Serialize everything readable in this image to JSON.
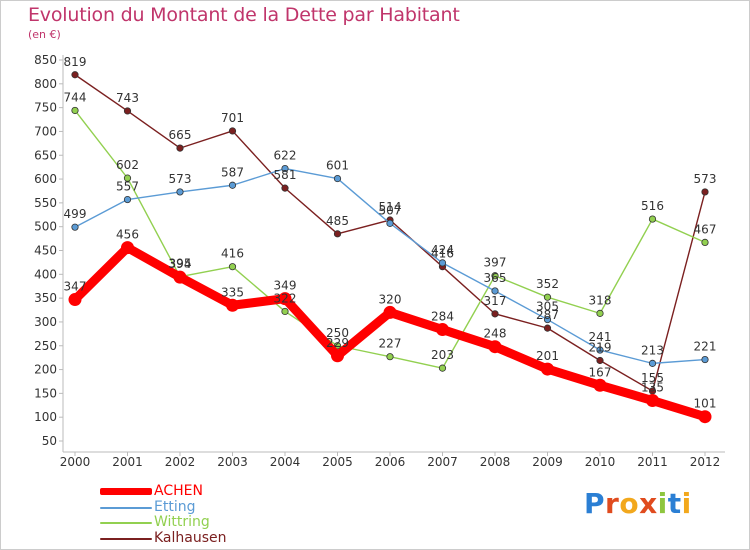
{
  "title": "Evolution du Montant de la Dette par Habitant",
  "unit": "(en €)",
  "logo": {
    "letters": [
      {
        "ch": "P",
        "color": "#2b7fd4"
      },
      {
        "ch": "r",
        "color": "#e04b1e"
      },
      {
        "ch": "o",
        "color": "#f2a81d"
      },
      {
        "ch": "x",
        "color": "#e04b1e"
      },
      {
        "ch": "i",
        "color": "#8ec63f"
      },
      {
        "ch": "t",
        "color": "#2b7fd4"
      },
      {
        "ch": "i",
        "color": "#f2a81d"
      }
    ]
  },
  "chart_data": {
    "type": "line",
    "title": "Evolution du Montant de la Dette par Habitant",
    "ylabel": "(en €)",
    "xlabel": "",
    "x": [
      "2000",
      "2001",
      "2002",
      "2003",
      "2004",
      "2005",
      "2006",
      "2007",
      "2008",
      "2009",
      "2010",
      "2011",
      "2012"
    ],
    "yticks": [
      50,
      100,
      150,
      200,
      250,
      300,
      350,
      400,
      450,
      500,
      550,
      600,
      650,
      700,
      750,
      800,
      850
    ],
    "ylim": [
      50,
      850
    ],
    "grid": false,
    "legend_position": "bottom-left",
    "series": [
      {
        "name": "ACHEN",
        "color": "#ff0000",
        "values": [
          347,
          456,
          394,
          335,
          349,
          229,
          320,
          284,
          248,
          201,
          167,
          135,
          101
        ]
      },
      {
        "name": "Etting",
        "color": "#5b9bd5",
        "values": [
          499,
          557,
          573,
          587,
          622,
          601,
          507,
          424,
          365,
          305,
          241,
          213,
          221
        ]
      },
      {
        "name": "Wittring",
        "color": "#92d050",
        "values": [
          744,
          602,
          395,
          416,
          322,
          250,
          227,
          203,
          397,
          352,
          318,
          516,
          467
        ]
      },
      {
        "name": "Kalhausen",
        "color": "#7b2020",
        "values": [
          819,
          743,
          665,
          701,
          581,
          485,
          514,
          416,
          317,
          287,
          219,
          155,
          573
        ]
      }
    ]
  }
}
